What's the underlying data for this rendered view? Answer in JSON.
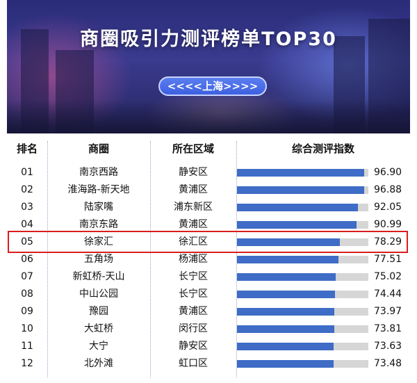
{
  "banner": {
    "title": "商圈吸引力测评榜单TOP30",
    "city_tag": "<<<<上海>>>>"
  },
  "chart_data": {
    "type": "table",
    "columns": [
      "排名",
      "商圈",
      "所在区域",
      "综合测评指数"
    ],
    "rows": [
      {
        "rank": "01",
        "area": "南京西路",
        "district": "静安区",
        "score": "96.90"
      },
      {
        "rank": "02",
        "area": "淮海路-新天地",
        "district": "黄浦区",
        "score": "96.88"
      },
      {
        "rank": "03",
        "area": "陆家嘴",
        "district": "浦东新区",
        "score": "92.05"
      },
      {
        "rank": "04",
        "area": "南京东路",
        "district": "黄浦区",
        "score": "90.99"
      },
      {
        "rank": "05",
        "area": "徐家汇",
        "district": "徐汇区",
        "score": "78.29"
      },
      {
        "rank": "06",
        "area": "五角场",
        "district": "杨浦区",
        "score": "77.51"
      },
      {
        "rank": "07",
        "area": "新虹桥-天山",
        "district": "长宁区",
        "score": "75.02"
      },
      {
        "rank": "08",
        "area": "中山公园",
        "district": "长宁区",
        "score": "74.44"
      },
      {
        "rank": "09",
        "area": "豫园",
        "district": "黄浦区",
        "score": "73.97"
      },
      {
        "rank": "10",
        "area": "大虹桥",
        "district": "闵行区",
        "score": "73.81"
      },
      {
        "rank": "11",
        "area": "大宁",
        "district": "静安区",
        "score": "73.63"
      },
      {
        "rank": "12",
        "area": "北外滩",
        "district": "虹口区",
        "score": "73.48"
      }
    ],
    "bar_values": [
      96.9,
      96.88,
      92.05,
      90.99,
      78.29,
      77.51,
      75.02,
      74.44,
      73.97,
      73.81,
      73.63,
      73.48
    ],
    "bar_max": 100,
    "highlighted_rank": "05",
    "bar_color": "#3e6cc6",
    "track_color": "#d6d6d6",
    "highlight_color": "#d81e1e"
  }
}
